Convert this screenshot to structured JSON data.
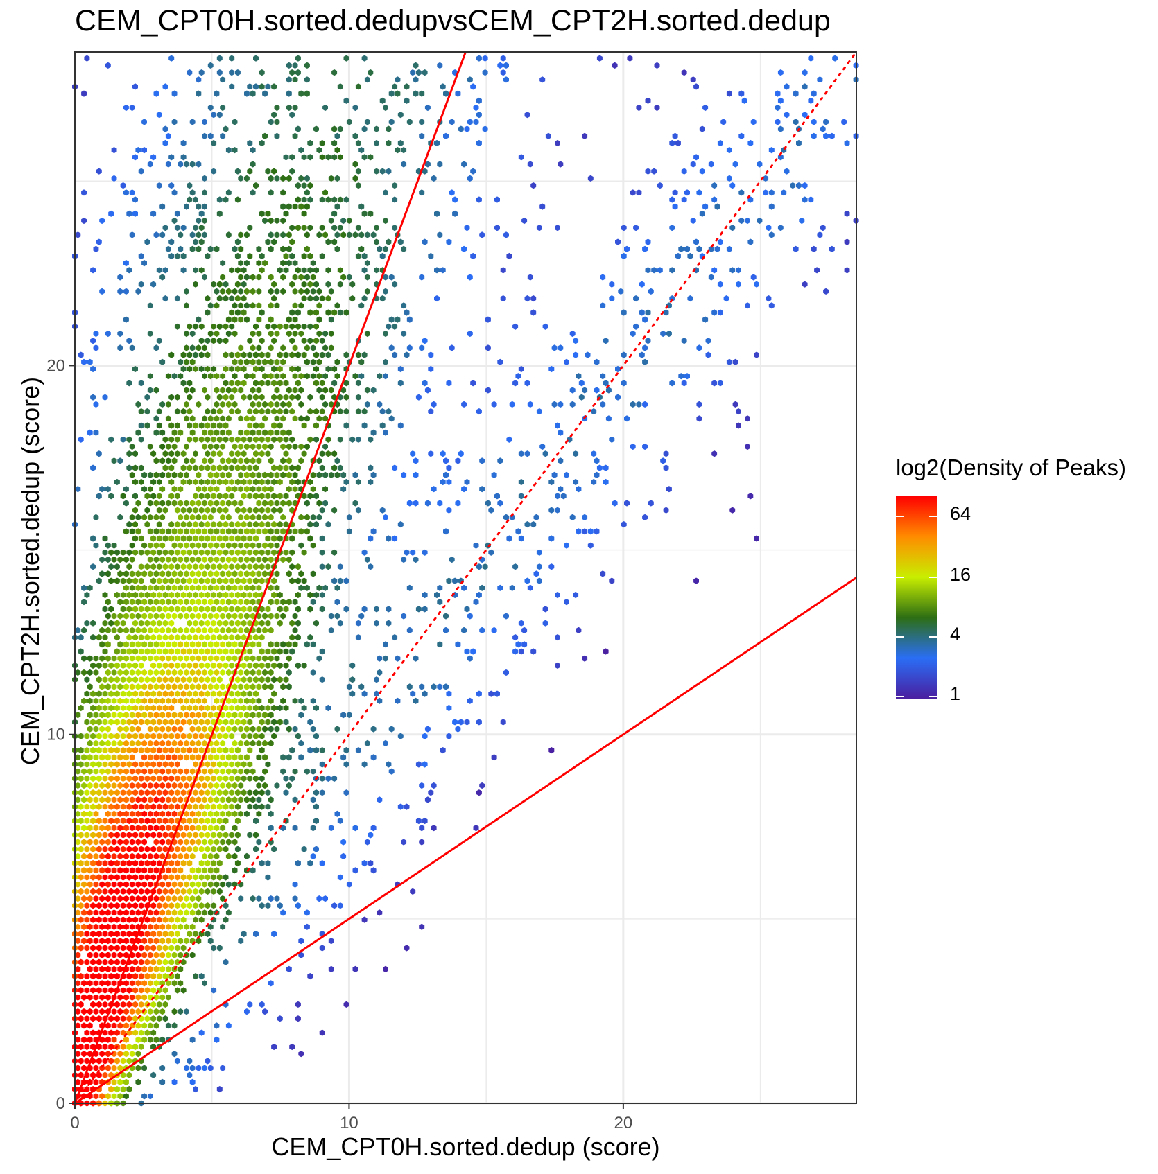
{
  "title": "CEM_CPT0H.sorted.dedupvsCEM_CPT2H.sorted.dedup",
  "chart_data": {
    "type": "hexbin",
    "title": "CEM_CPT0H.sorted.dedupvsCEM_CPT2H.sorted.dedup",
    "xlabel": "CEM_CPT0H.sorted.dedup (score)",
    "ylabel": "CEM_CPT2H.sorted.dedup (score)",
    "xlim": [
      0,
      28.5
    ],
    "ylim": [
      0,
      28.5
    ],
    "x_ticks": [
      0,
      10,
      20
    ],
    "y_ticks": [
      0,
      10,
      20
    ],
    "grid": true,
    "legend": {
      "title": "log2(Density of Peaks)",
      "position": "right",
      "labels": [
        "64",
        "16",
        "4",
        "1"
      ],
      "colors": [
        "#ff0000",
        "#ff8c00",
        "#c8ee00",
        "#2d6e14",
        "#2a6ef5",
        "#4a1fa0"
      ]
    },
    "reference_lines": [
      {
        "type": "solid",
        "slope": 2,
        "intercept": 0,
        "color": "#ff0000"
      },
      {
        "type": "solid",
        "slope": 0.5,
        "intercept": 0,
        "color": "#ff0000"
      },
      {
        "type": "dotted",
        "slope": 1,
        "intercept": 0,
        "color": "#ff0000"
      }
    ],
    "density_cloud": {
      "center": [
        1.8,
        3.2
      ],
      "main_axis_slope": 3.0,
      "peak_density": 64,
      "x_range": [
        0,
        9.5
      ],
      "y_range": [
        0,
        28.5
      ]
    }
  }
}
